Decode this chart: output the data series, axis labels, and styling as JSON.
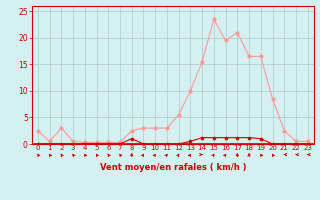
{
  "x": [
    0,
    1,
    2,
    3,
    4,
    5,
    6,
    7,
    8,
    9,
    10,
    11,
    12,
    13,
    14,
    15,
    16,
    17,
    18,
    19,
    20,
    21,
    22,
    23
  ],
  "y_rafales": [
    2.5,
    0.5,
    3.0,
    0.5,
    0.3,
    0.3,
    0.3,
    0.3,
    2.5,
    3.0,
    3.0,
    3.0,
    5.5,
    10.0,
    15.5,
    23.5,
    19.5,
    21.0,
    16.5,
    16.5,
    8.5,
    2.5,
    0.5,
    0.5
  ],
  "y_moyen": [
    0.0,
    0.0,
    0.0,
    0.0,
    0.0,
    0.0,
    0.0,
    0.0,
    1.0,
    0.0,
    0.0,
    0.0,
    0.0,
    0.5,
    1.2,
    1.2,
    1.2,
    1.2,
    1.2,
    1.0,
    0.0,
    0.0,
    0.0,
    0.0
  ],
  "color_rafales": "#ff9999",
  "color_moyen": "#cc0000",
  "bg_color": "#d5f0f0",
  "grid_color": "#b0c8c8",
  "axis_color": "#cc0000",
  "xlabel": "Vent moyen/en rafales ( km/h )",
  "ylim": [
    0,
    26
  ],
  "xlim": [
    -0.5,
    23.5
  ],
  "yticks": [
    0,
    5,
    10,
    15,
    20,
    25
  ],
  "xticks": [
    0,
    1,
    2,
    3,
    4,
    5,
    6,
    7,
    8,
    9,
    10,
    11,
    12,
    13,
    14,
    15,
    16,
    17,
    18,
    19,
    20,
    21,
    22,
    23
  ],
  "arrow_angles_deg": [
    225,
    225,
    225,
    225,
    225,
    225,
    225,
    225,
    180,
    135,
    135,
    135,
    135,
    135,
    90,
    135,
    135,
    180,
    180,
    225,
    225,
    270,
    270,
    270
  ]
}
